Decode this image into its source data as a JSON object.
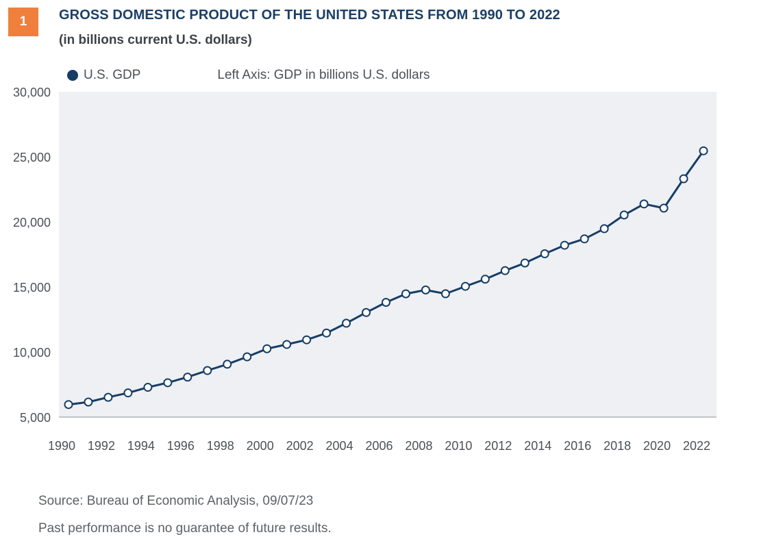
{
  "header": {
    "badge": "1",
    "title": "GROSS DOMESTIC PRODUCT OF THE UNITED STATES FROM 1990 TO 2022",
    "subtitle": "(in billions current U.S. dollars)"
  },
  "legend": {
    "series_label": "U.S. GDP",
    "axis_note": "Left Axis: GDP in billions U.S. dollars"
  },
  "footer": {
    "source": "Source: Bureau of Economic Analysis,  09/07/23",
    "disclaimer": "Past performance is no guarantee of future results."
  },
  "colors": {
    "line": "#163d66",
    "plot_background": "#eef0f3",
    "badge": "#f07f3c"
  },
  "chart_data": {
    "type": "line",
    "title": "GROSS DOMESTIC PRODUCT OF THE UNITED STATES FROM 1990 TO 2022",
    "subtitle": "(in billions current U.S. dollars)",
    "xlabel": "",
    "ylabel": "",
    "xlim": [
      1990,
      2022
    ],
    "ylim": [
      5000,
      30000
    ],
    "x_ticks": [
      "1990",
      "1992",
      "1994",
      "1996",
      "1998",
      "2000",
      "2002",
      "2004",
      "2006",
      "2008",
      "2010",
      "2012",
      "2014",
      "2016",
      "2018",
      "2020",
      "2022"
    ],
    "y_ticks": [
      "5,000",
      "10,000",
      "15,000",
      "20,000",
      "25,000",
      "30,000"
    ],
    "x": [
      1990,
      1991,
      1992,
      1993,
      1994,
      1995,
      1996,
      1997,
      1998,
      1999,
      2000,
      2001,
      2002,
      2003,
      2004,
      2005,
      2006,
      2007,
      2008,
      2009,
      2010,
      2011,
      2012,
      2013,
      2014,
      2015,
      2016,
      2017,
      2018,
      2019,
      2020,
      2021,
      2022
    ],
    "series": [
      {
        "name": "U.S. GDP",
        "values": [
          5963,
          6158,
          6520,
          6859,
          7287,
          7640,
          8073,
          8578,
          9063,
          9631,
          10251,
          10582,
          10936,
          11458,
          12214,
          13039,
          13816,
          14474,
          14770,
          14478,
          15049,
          15600,
          16254,
          16843,
          17551,
          18206,
          18695,
          19477,
          20533,
          21381,
          21060,
          23315,
          25463
        ]
      }
    ],
    "grid": false,
    "legend_position": "top-left",
    "marker": "hollow-circle"
  }
}
